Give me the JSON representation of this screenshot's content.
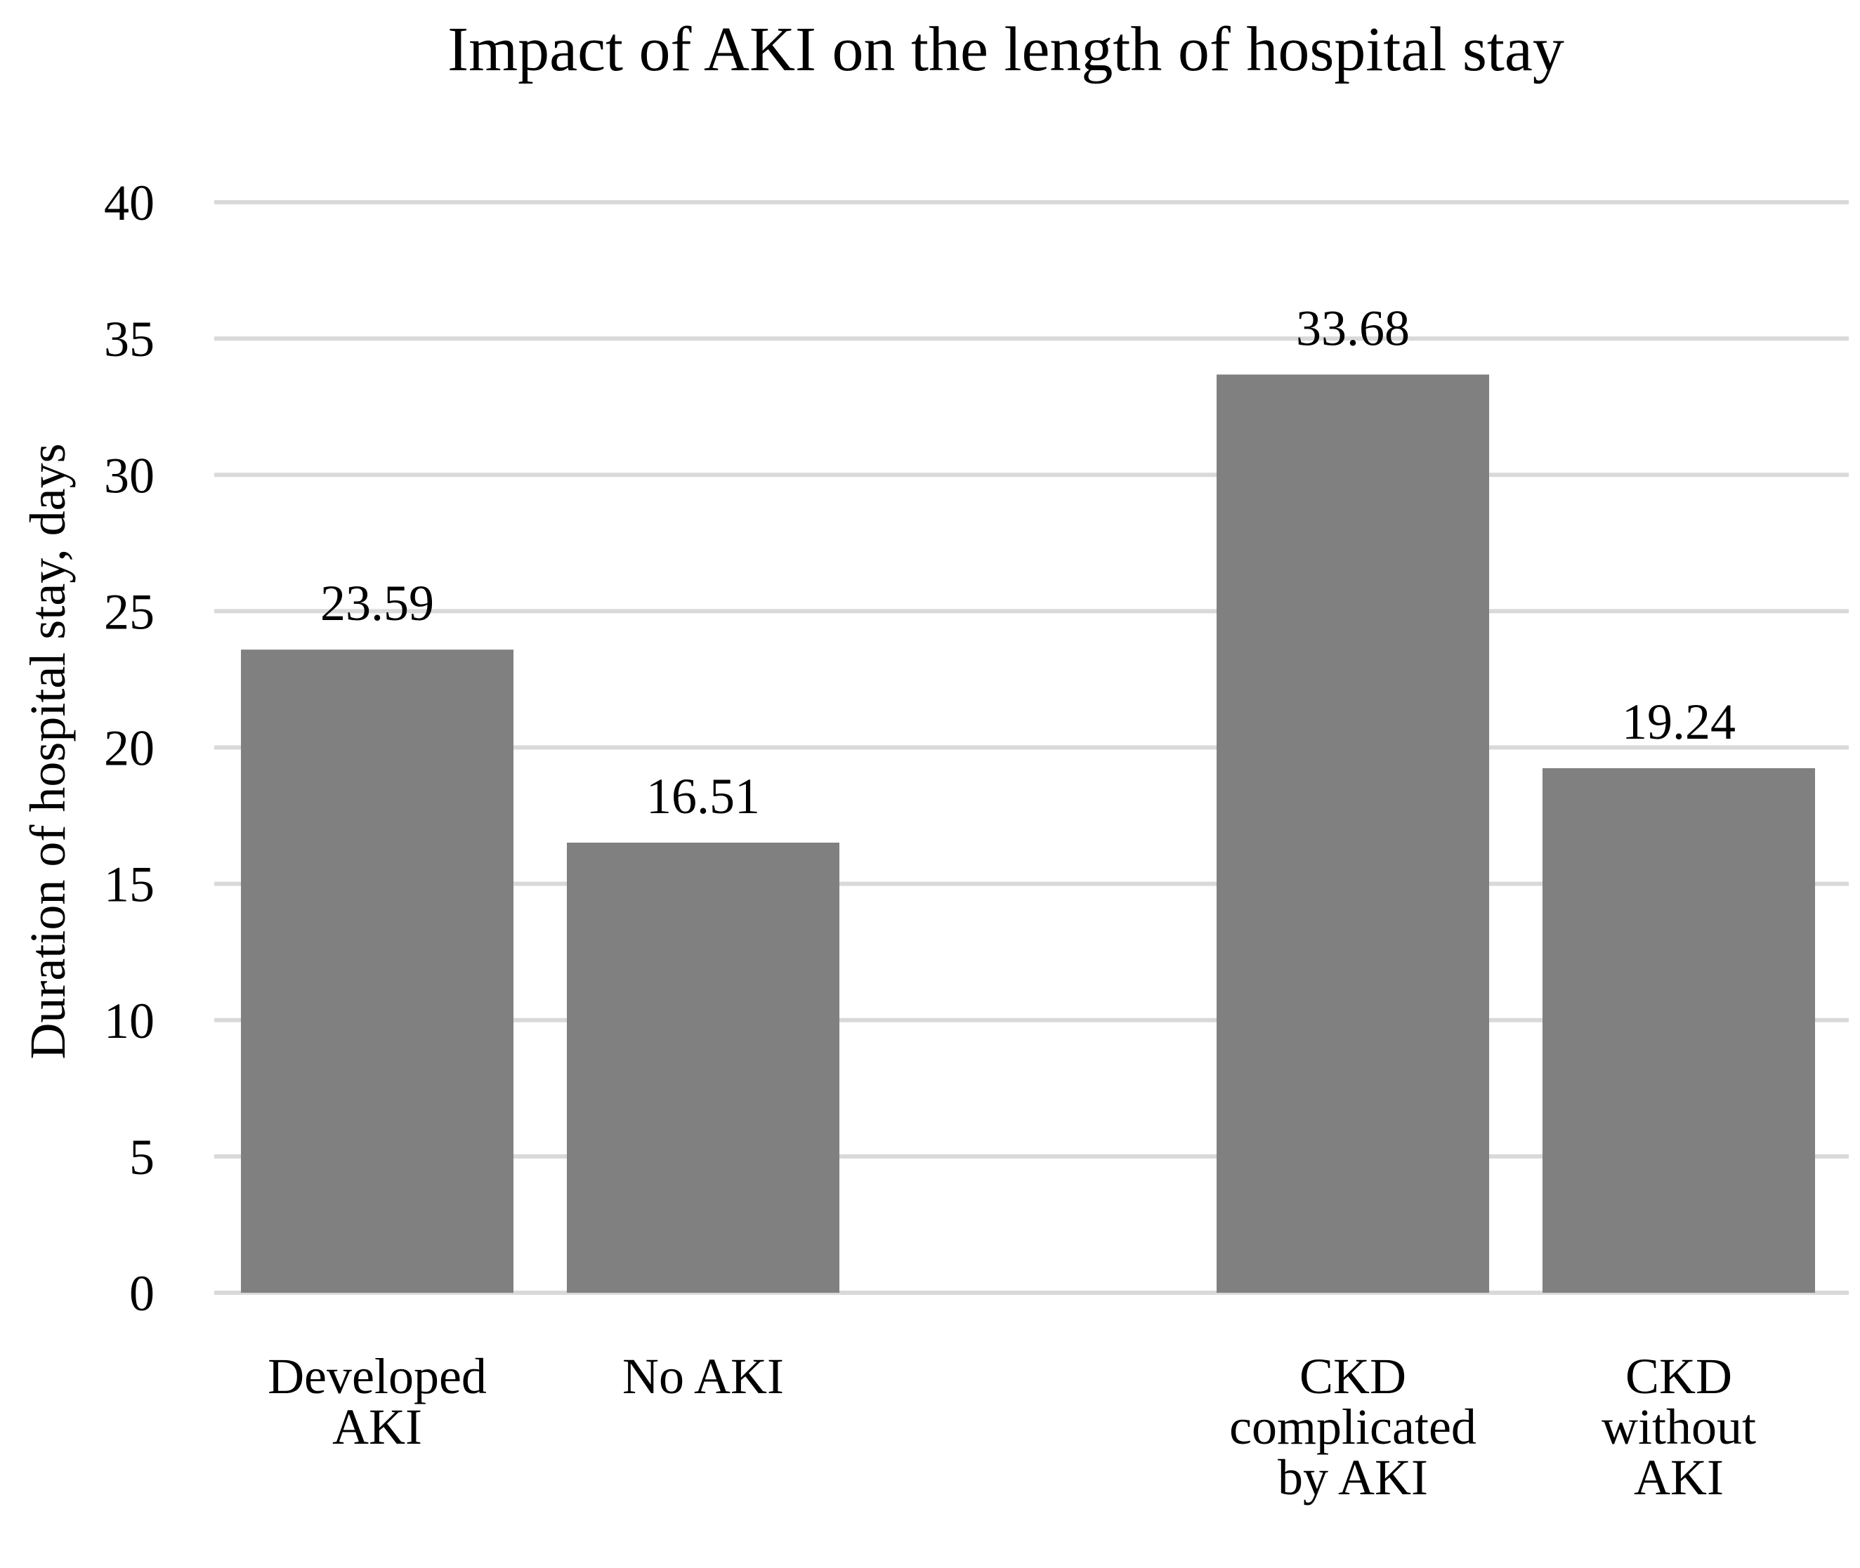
{
  "chart_data": {
    "type": "bar",
    "title": "Impact of AKI on the length of hospital stay",
    "xlabel": "",
    "ylabel": "Duration of hospital stay, days",
    "ylim": [
      0,
      40
    ],
    "yticks": [
      0,
      5,
      10,
      15,
      20,
      25,
      30,
      35,
      40
    ],
    "grid": true,
    "categories": [
      [
        "Developed",
        "AKI"
      ],
      [
        "No AKI"
      ],
      [
        "CKD",
        "complicated",
        "by AKI"
      ],
      [
        "CKD",
        "without",
        "AKI"
      ]
    ],
    "values": [
      23.59,
      16.51,
      33.68,
      19.24
    ],
    "data_labels": [
      "23.59",
      "16.51",
      "33.68",
      "19.24"
    ],
    "colors": {
      "bar": "#808080",
      "grid": "#d9d9d9",
      "text": "#000000"
    }
  }
}
